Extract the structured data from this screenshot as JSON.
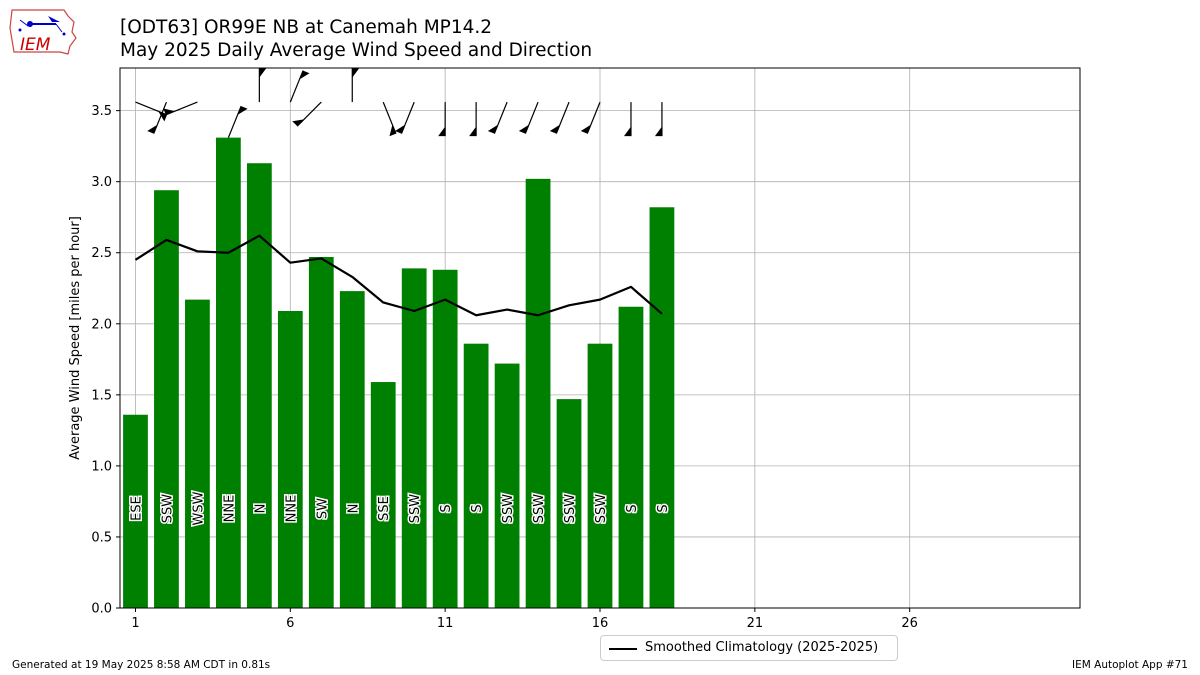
{
  "header": {
    "title_line1": "[ODT63] OR99E NB at Canemah MP14.2",
    "title_line2": "May 2025 Daily Average Wind Speed and Direction"
  },
  "logo": {
    "text": "IEM",
    "color": "#cc0000"
  },
  "footer": {
    "generated": "Generated at 19 May 2025 8:58 AM CDT in 0.81s",
    "app": "IEM Autoplot App #71"
  },
  "legend": {
    "label": "Smoothed Climatology (2025-2025)"
  },
  "chart_data": {
    "type": "bar",
    "ylabel": "Average Wind Speed [miles per hour]",
    "xlim": [
      0.5,
      31.5
    ],
    "ylim": [
      0,
      3.8
    ],
    "x_ticks": [
      1,
      6,
      11,
      16,
      21,
      26
    ],
    "y_ticks": [
      0.0,
      0.5,
      1.0,
      1.5,
      2.0,
      2.5,
      3.0,
      3.5
    ],
    "grid": true,
    "bar_color": "#008000",
    "days": [
      1,
      2,
      3,
      4,
      5,
      6,
      7,
      8,
      9,
      10,
      11,
      12,
      13,
      14,
      15,
      16,
      17,
      18
    ],
    "values": [
      1.36,
      2.94,
      2.17,
      3.31,
      3.13,
      2.09,
      2.47,
      2.23,
      1.59,
      2.39,
      2.38,
      1.86,
      1.72,
      3.02,
      1.47,
      1.86,
      2.12,
      2.82
    ],
    "directions": [
      "ESE",
      "SSW",
      "WSW",
      "NNE",
      "N",
      "NNE",
      "SW",
      "N",
      "SSE",
      "SSW",
      "S",
      "S",
      "SSW",
      "SSW",
      "SSW",
      "SSW",
      "S",
      "S"
    ],
    "wind_barb_from_deg": [
      112,
      202,
      248,
      22,
      0,
      22,
      225,
      0,
      158,
      202,
      180,
      180,
      202,
      202,
      202,
      202,
      180,
      180
    ],
    "climatology": {
      "name": "Smoothed Climatology (2025-2025)",
      "color": "#000000",
      "values": [
        2.45,
        2.59,
        2.51,
        2.5,
        2.62,
        2.43,
        2.46,
        2.33,
        2.15,
        2.09,
        2.17,
        2.06,
        2.1,
        2.06,
        2.13,
        2.17,
        2.26,
        2.07
      ]
    }
  }
}
